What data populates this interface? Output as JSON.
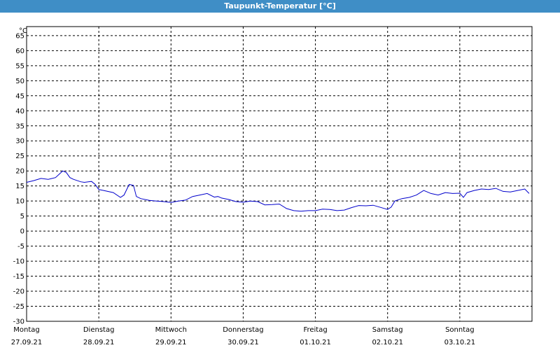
{
  "title": "Taupunkt-Temperatur [°C]",
  "colors": {
    "titlebar": "#3f8ec6",
    "line": "#0000cc",
    "grid": "#000000"
  },
  "chart_data": {
    "type": "line",
    "title": "Taupunkt-Temperatur [°C]",
    "unit_label": "°C",
    "ylim": [
      -30,
      68
    ],
    "yticks": [
      -30,
      -25,
      -20,
      -15,
      -10,
      -5,
      0,
      5,
      10,
      15,
      20,
      25,
      30,
      35,
      40,
      45,
      50,
      55,
      60,
      65
    ],
    "xlim": [
      0,
      7
    ],
    "grid": true,
    "day_labels": [
      {
        "day": "Montag",
        "date": "27.09.21"
      },
      {
        "day": "Dienstag",
        "date": "28.09.21"
      },
      {
        "day": "Mittwoch",
        "date": "29.09.21"
      },
      {
        "day": "Donnerstag",
        "date": "30.09.21"
      },
      {
        "day": "Freitag",
        "date": "01.10.21"
      },
      {
        "day": "Samstag",
        "date": "02.10.21"
      },
      {
        "day": "Sonntag",
        "date": "03.10.21"
      }
    ],
    "series": [
      {
        "x": [
          0.0,
          0.1,
          0.2,
          0.3,
          0.4,
          0.5,
          0.55,
          0.6,
          0.65,
          0.75,
          0.8,
          0.9,
          0.95,
          1.0,
          1.05,
          1.2,
          1.3,
          1.35,
          1.42,
          1.48,
          1.52,
          1.58,
          1.7,
          1.8,
          1.9,
          2.0,
          2.1,
          2.2,
          2.3,
          2.4,
          2.5,
          2.6,
          2.65,
          2.7,
          2.8,
          2.9,
          3.0,
          3.1,
          3.2,
          3.3,
          3.4,
          3.5,
          3.6,
          3.7,
          3.8,
          3.9,
          4.0,
          4.1,
          4.2,
          4.3,
          4.4,
          4.5,
          4.6,
          4.7,
          4.8,
          4.9,
          5.0,
          5.05,
          5.1,
          5.2,
          5.3,
          5.4,
          5.5,
          5.6,
          5.7,
          5.8,
          5.9,
          6.0,
          6.05,
          6.1,
          6.2,
          6.3,
          6.4,
          6.5,
          6.6,
          6.7,
          6.8,
          6.9,
          6.96
        ],
        "y": [
          16.2,
          16.8,
          17.5,
          17.2,
          17.8,
          20.0,
          19.5,
          17.8,
          17.2,
          16.4,
          16.2,
          16.5,
          15.5,
          13.8,
          13.6,
          12.8,
          11.2,
          12.0,
          15.5,
          15.2,
          11.5,
          10.8,
          10.2,
          10.0,
          9.8,
          9.5,
          10.0,
          10.3,
          11.5,
          12.0,
          12.5,
          11.3,
          11.5,
          11.0,
          10.5,
          9.8,
          9.6,
          10.0,
          9.8,
          8.7,
          8.8,
          9.0,
          7.5,
          6.8,
          6.6,
          6.8,
          6.8,
          7.3,
          7.2,
          6.8,
          7.0,
          7.8,
          8.5,
          8.4,
          8.6,
          7.9,
          7.2,
          8.0,
          10.0,
          10.8,
          11.2,
          12.0,
          13.5,
          12.5,
          12.0,
          12.8,
          12.5,
          12.6,
          11.2,
          12.8,
          13.5,
          14.0,
          13.8,
          14.2,
          13.2,
          13.0,
          13.5,
          14.0,
          12.5
        ]
      }
    ]
  }
}
